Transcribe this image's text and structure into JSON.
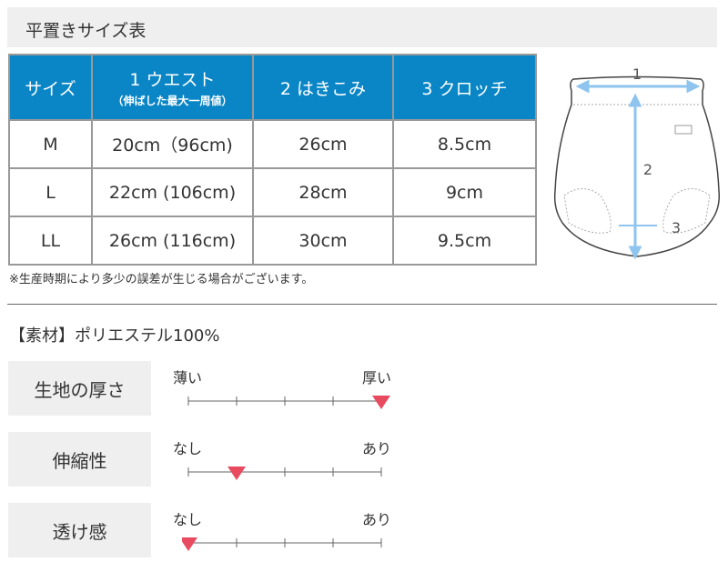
{
  "size_table": {
    "title": "平置きサイズ表",
    "headers": [
      {
        "label": "サイズ"
      },
      {
        "label": "1 ウエスト",
        "sub": "（伸ばした最大一周値）"
      },
      {
        "label": "2 はきこみ"
      },
      {
        "label": "3 クロッチ"
      }
    ],
    "rows": [
      [
        "M",
        "20cm（96cm)",
        "26cm",
        "8.5cm"
      ],
      [
        "L",
        "22cm (106cm)",
        "28cm",
        "9cm"
      ],
      [
        "LL",
        "26cm (116cm)",
        "30cm",
        "9.5cm"
      ]
    ],
    "note": "※生産時期により多少の誤差が生じる場合がございます。"
  },
  "diagram": {
    "labels": [
      "1",
      "2",
      "3"
    ],
    "arrow_color": "#8ec4ee"
  },
  "material": "【素材】ポリエステル100%",
  "scales": [
    {
      "label": "生地の厚さ",
      "left": "薄い",
      "right": "厚い",
      "level": 4,
      "max": 4
    },
    {
      "label": "伸縮性",
      "left": "なし",
      "right": "あり",
      "level": 1,
      "max": 4
    },
    {
      "label": "透け感",
      "left": "なし",
      "right": "あり",
      "level": 0,
      "max": 4
    }
  ],
  "colors": {
    "header": "#0a86c6",
    "marker": "#e84a5f",
    "label_bg": "#efefef"
  }
}
